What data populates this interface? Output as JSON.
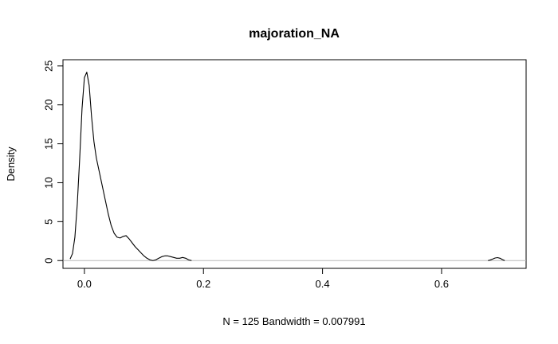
{
  "chart_data": {
    "type": "line",
    "title": "majoration_NA",
    "xlabel": "N = 125   Bandwidth = 0.007991",
    "ylabel": "Density",
    "xlim": [
      -0.036,
      0.742
    ],
    "ylim": [
      -1.0,
      25.8
    ],
    "x_ticks": [
      0.0,
      0.2,
      0.4,
      0.6
    ],
    "x_tick_labels": [
      "0.0",
      "0.2",
      "0.4",
      "0.6"
    ],
    "y_ticks": [
      0,
      5,
      10,
      15,
      20,
      25
    ],
    "y_tick_labels": [
      "0",
      "5",
      "10",
      "15",
      "20",
      "25"
    ],
    "grid": false,
    "legend": "none",
    "baseline": 0,
    "series": [
      {
        "color": "#000000",
        "segments": [
          {
            "x": [
              -0.024,
              -0.02,
              -0.016,
              -0.012,
              -0.008,
              -0.004,
              0.0,
              0.004,
              0.008,
              0.012,
              0.016,
              0.02,
              0.025,
              0.03,
              0.035,
              0.04,
              0.045,
              0.05,
              0.055,
              0.06,
              0.065,
              0.07,
              0.075,
              0.08,
              0.085,
              0.09,
              0.095,
              0.1,
              0.105,
              0.11,
              0.115,
              0.12,
              0.125,
              0.13,
              0.135,
              0.14,
              0.145,
              0.15,
              0.155,
              0.16,
              0.165,
              0.17,
              0.175,
              0.18
            ],
            "y": [
              0.2,
              0.9,
              3.0,
              7.2,
              13.0,
              19.5,
              23.5,
              24.2,
              22.5,
              18.5,
              15.3,
              13.2,
              11.4,
              9.6,
              7.8,
              6.0,
              4.5,
              3.5,
              3.0,
              2.9,
              3.1,
              3.2,
              2.8,
              2.3,
              1.8,
              1.4,
              1.0,
              0.6,
              0.3,
              0.1,
              0.0,
              0.1,
              0.3,
              0.5,
              0.6,
              0.6,
              0.5,
              0.4,
              0.3,
              0.3,
              0.4,
              0.3,
              0.1,
              0.0
            ]
          },
          {
            "x": [
              0.678,
              0.682,
              0.686,
              0.69,
              0.694,
              0.698,
              0.702,
              0.706
            ],
            "y": [
              0.0,
              0.08,
              0.2,
              0.33,
              0.38,
              0.3,
              0.14,
              0.0
            ]
          }
        ]
      }
    ]
  }
}
